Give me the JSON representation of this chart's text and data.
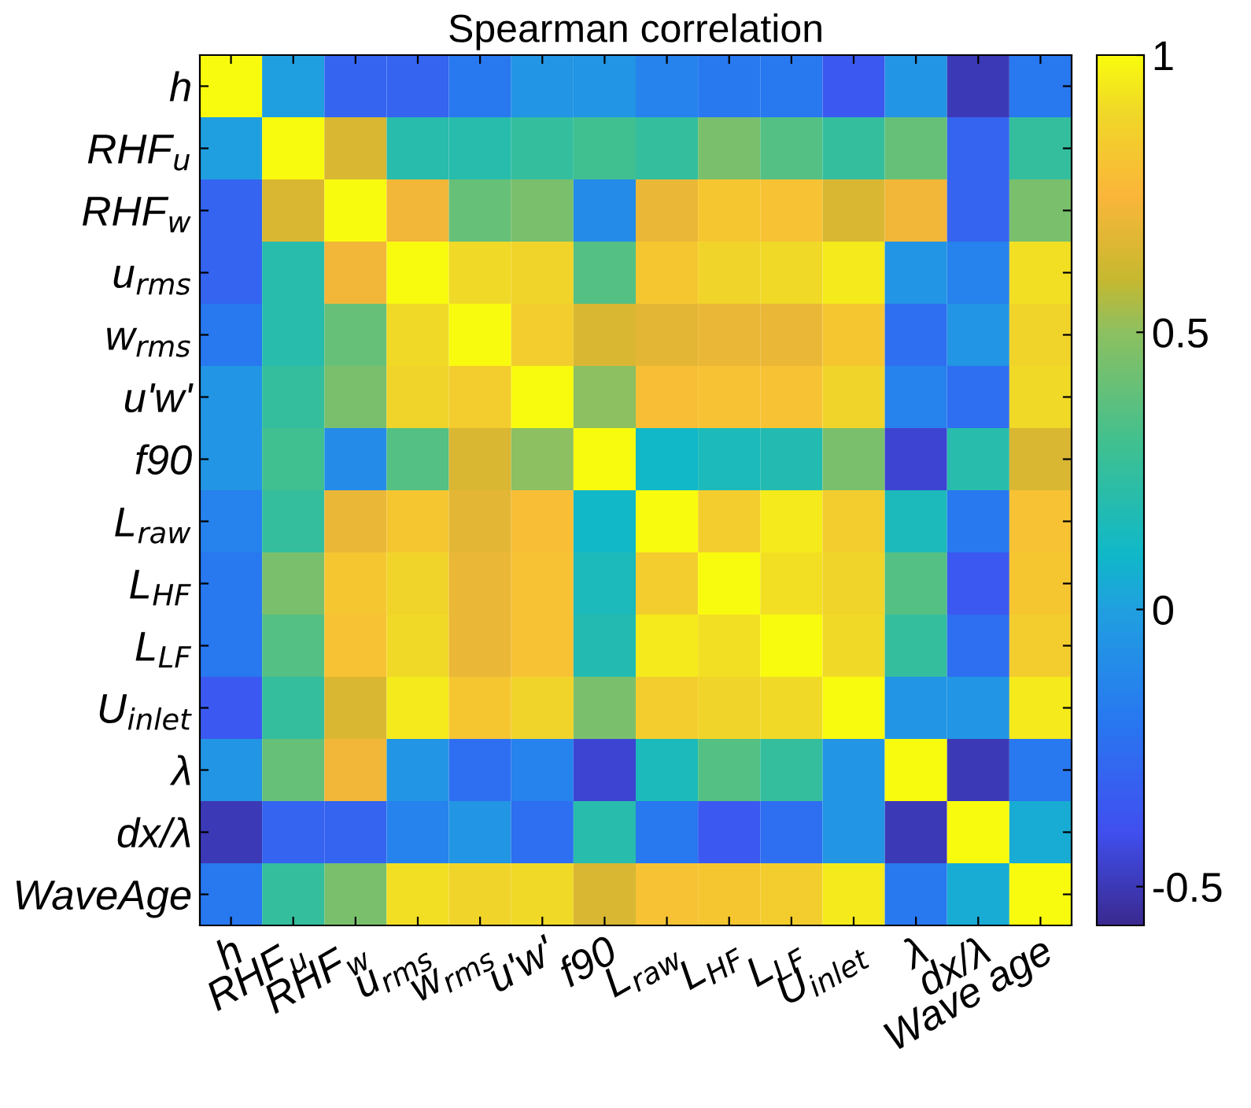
{
  "chart_data": {
    "type": "heatmap",
    "title": "Spearman correlation",
    "categories": [
      "h",
      "RHF$_{u}$",
      "RHF$_{w}$",
      "u$_{rms}$",
      "w$_{rms}$",
      "u'w'",
      "f90",
      "L$_{raw}$",
      "L$_{HF}$",
      "L$_{LF}$",
      "U$_{inlet}$",
      "λ",
      "dx/λ",
      "Wave age"
    ],
    "y_categories": [
      "h",
      "RHF$_{u}$",
      "RHF$_{w}$",
      "u$_{rms}$",
      "w$_{rms}$",
      "u'w'",
      "f90",
      "L$_{raw}$",
      "L$_{HF}$",
      "L$_{LF}$",
      "U$_{inlet}$",
      "λ",
      "dx/λ",
      "WaveAge"
    ],
    "cells": [
      [
        1,
        0.0,
        -0.3,
        -0.3,
        -0.2,
        -0.05,
        -0.05,
        -0.15,
        -0.2,
        -0.2,
        -0.35,
        -0.05,
        -0.5,
        -0.2
      ],
      [
        0.0,
        1,
        0.65,
        0.2,
        0.2,
        0.25,
        0.3,
        0.25,
        0.45,
        0.35,
        0.25,
        0.4,
        -0.3,
        0.25
      ],
      [
        -0.3,
        0.65,
        1,
        0.72,
        0.4,
        0.45,
        -0.1,
        0.7,
        0.82,
        0.8,
        0.65,
        0.72,
        -0.3,
        0.45
      ],
      [
        -0.3,
        0.2,
        0.72,
        1,
        0.9,
        0.88,
        0.35,
        0.82,
        0.88,
        0.9,
        0.95,
        -0.05,
        -0.15,
        0.92
      ],
      [
        -0.2,
        0.2,
        0.4,
        0.9,
        1,
        0.85,
        0.65,
        0.68,
        0.7,
        0.7,
        0.82,
        -0.25,
        -0.05,
        0.88
      ],
      [
        -0.05,
        0.25,
        0.45,
        0.88,
        0.85,
        1,
        0.5,
        0.78,
        0.8,
        0.8,
        0.88,
        -0.15,
        -0.25,
        0.9
      ],
      [
        -0.05,
        0.3,
        -0.1,
        0.35,
        0.65,
        0.5,
        1,
        0.1,
        0.15,
        0.18,
        0.45,
        -0.45,
        0.2,
        0.65
      ],
      [
        -0.15,
        0.25,
        0.7,
        0.82,
        0.68,
        0.78,
        0.1,
        1,
        0.85,
        0.95,
        0.85,
        0.15,
        -0.2,
        0.8
      ],
      [
        -0.2,
        0.45,
        0.82,
        0.88,
        0.7,
        0.8,
        0.15,
        0.85,
        1,
        0.92,
        0.88,
        0.35,
        -0.35,
        0.82
      ],
      [
        -0.2,
        0.35,
        0.8,
        0.9,
        0.7,
        0.8,
        0.18,
        0.95,
        0.92,
        1,
        0.9,
        0.25,
        -0.25,
        0.85
      ],
      [
        -0.35,
        0.25,
        0.65,
        0.95,
        0.82,
        0.88,
        0.45,
        0.85,
        0.88,
        0.9,
        1,
        -0.05,
        -0.05,
        0.95
      ],
      [
        -0.05,
        0.4,
        0.72,
        -0.05,
        -0.25,
        -0.15,
        -0.45,
        0.15,
        0.35,
        0.25,
        -0.05,
        1,
        -0.5,
        -0.2
      ],
      [
        -0.5,
        -0.3,
        -0.3,
        -0.15,
        -0.05,
        -0.25,
        0.2,
        -0.2,
        -0.35,
        -0.25,
        -0.05,
        -0.5,
        1,
        0.05
      ],
      [
        -0.2,
        0.25,
        0.45,
        0.92,
        0.88,
        0.9,
        0.65,
        0.8,
        0.82,
        0.85,
        0.95,
        -0.2,
        0.05,
        1
      ]
    ],
    "clim": [
      -0.57,
      1
    ],
    "cticks": [
      -0.5,
      0,
      0.5,
      1
    ]
  }
}
